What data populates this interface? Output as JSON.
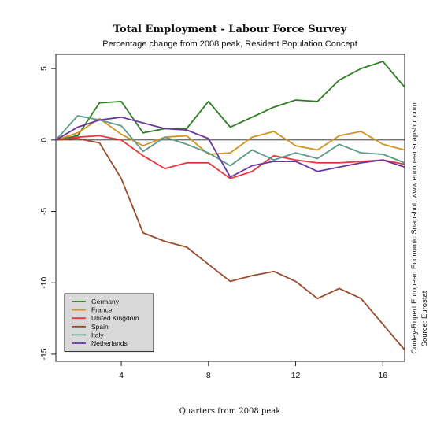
{
  "chart_data": {
    "type": "line",
    "title": "Total Employment - Labour Force Survey",
    "subtitle": "Percentage change from 2008 peak, Resident Population Concept",
    "xlabel": "Quarters from 2008 peak",
    "ylabel": "",
    "xlim": [
      1,
      17
    ],
    "ylim": [
      -15.5,
      6
    ],
    "x_ticks": [
      4,
      8,
      12,
      16
    ],
    "y_ticks": [
      5,
      0,
      -5,
      -10,
      -15
    ],
    "reference_line": 0,
    "legend_position": "bottom-left",
    "side_note": "Cooley-Rupert European Economic Snapshot; www.europeansnapshot.com",
    "source_note": "Source: Eurostat",
    "x": [
      1,
      2,
      3,
      4,
      5,
      6,
      7,
      8,
      9,
      10,
      11,
      12,
      13,
      14,
      15,
      16,
      17
    ],
    "series": [
      {
        "name": "Germany",
        "color": "#2e7d22",
        "values": [
          0.0,
          0.3,
          2.6,
          2.7,
          0.5,
          0.8,
          0.8,
          2.7,
          0.9,
          1.6,
          2.3,
          2.8,
          2.7,
          4.2,
          5.0,
          5.5,
          3.7
        ]
      },
      {
        "name": "France",
        "color": "#d39322",
        "values": [
          0.0,
          0.5,
          1.5,
          0.4,
          -0.4,
          0.2,
          0.3,
          -1.0,
          -0.9,
          0.2,
          0.6,
          -0.4,
          -0.7,
          0.3,
          0.6,
          -0.3,
          -0.7
        ]
      },
      {
        "name": "United Kingdom",
        "color": "#e8383d",
        "values": [
          0.0,
          0.2,
          0.3,
          0.0,
          -1.1,
          -2.0,
          -1.6,
          -1.6,
          -2.7,
          -2.2,
          -1.1,
          -1.4,
          -1.6,
          -1.6,
          -1.5,
          -1.4,
          -1.7
        ]
      },
      {
        "name": "Spain",
        "color": "#9a4a2a",
        "values": [
          0.0,
          0.1,
          -0.2,
          -2.7,
          -6.5,
          -7.1,
          -7.5,
          -8.7,
          -9.9,
          -9.5,
          -9.2,
          -9.9,
          -11.1,
          -10.4,
          -11.1,
          -12.9,
          -14.7
        ]
      },
      {
        "name": "Italy",
        "color": "#5b9a8b",
        "values": [
          0.0,
          1.7,
          1.4,
          1.0,
          -0.8,
          0.2,
          -0.3,
          -0.9,
          -1.8,
          -0.7,
          -1.4,
          -0.9,
          -1.3,
          -0.3,
          -0.9,
          -1.0,
          -1.6
        ]
      },
      {
        "name": "Netherlands",
        "color": "#6a35a0",
        "values": [
          0.0,
          0.9,
          1.4,
          1.6,
          1.2,
          0.8,
          0.7,
          0.1,
          -2.6,
          -1.8,
          -1.5,
          -1.5,
          -2.2,
          -1.9,
          -1.6,
          -1.4,
          -1.9
        ]
      }
    ]
  }
}
